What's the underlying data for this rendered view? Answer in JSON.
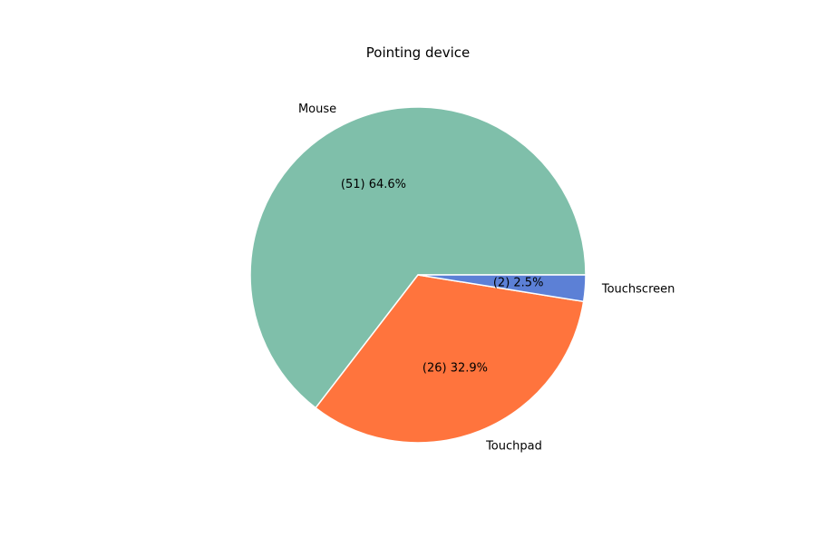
{
  "chart_data": {
    "type": "pie",
    "title": "Pointing device",
    "slices": [
      {
        "label": "Mouse",
        "count": 51,
        "percent_label": "(51) 64.6%",
        "color": "#7fbfaa"
      },
      {
        "label": "Touchpad",
        "count": 26,
        "percent_label": "(26) 32.9%",
        "color": "#ff743d"
      },
      {
        "label": "Touchscreen",
        "count": 2,
        "percent_label": "(2) 2.5%",
        "color": "#5c80d6"
      }
    ],
    "start_angle_deg": 0,
    "direction": "counterclockwise",
    "legend": "none"
  }
}
